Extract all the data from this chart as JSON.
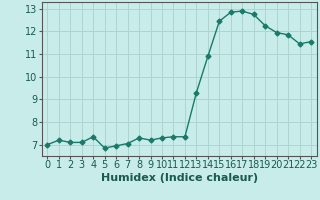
{
  "x": [
    0,
    1,
    2,
    3,
    4,
    5,
    6,
    7,
    8,
    9,
    10,
    11,
    12,
    13,
    14,
    15,
    16,
    17,
    18,
    19,
    20,
    21,
    22,
    23
  ],
  "y": [
    7.0,
    7.2,
    7.1,
    7.1,
    7.35,
    6.85,
    6.95,
    7.05,
    7.3,
    7.2,
    7.3,
    7.35,
    7.35,
    9.3,
    10.9,
    12.45,
    12.85,
    12.9,
    12.75,
    12.25,
    11.95,
    11.85,
    11.45,
    11.55
  ],
  "line_color": "#1a7a6a",
  "marker": "D",
  "marker_size": 2.5,
  "bg_color": "#c8ecea",
  "grid_color": "#aed4d0",
  "xlabel": "Humidex (Indice chaleur)",
  "ylim": [
    6.5,
    13.3
  ],
  "xlim": [
    -0.5,
    23.5
  ],
  "yticks": [
    7,
    8,
    9,
    10,
    11,
    12,
    13
  ],
  "xticks": [
    0,
    1,
    2,
    3,
    4,
    5,
    6,
    7,
    8,
    9,
    10,
    11,
    12,
    13,
    14,
    15,
    16,
    17,
    18,
    19,
    20,
    21,
    22,
    23
  ],
  "tick_fontsize": 7,
  "xlabel_fontsize": 8,
  "line_width": 1.0
}
